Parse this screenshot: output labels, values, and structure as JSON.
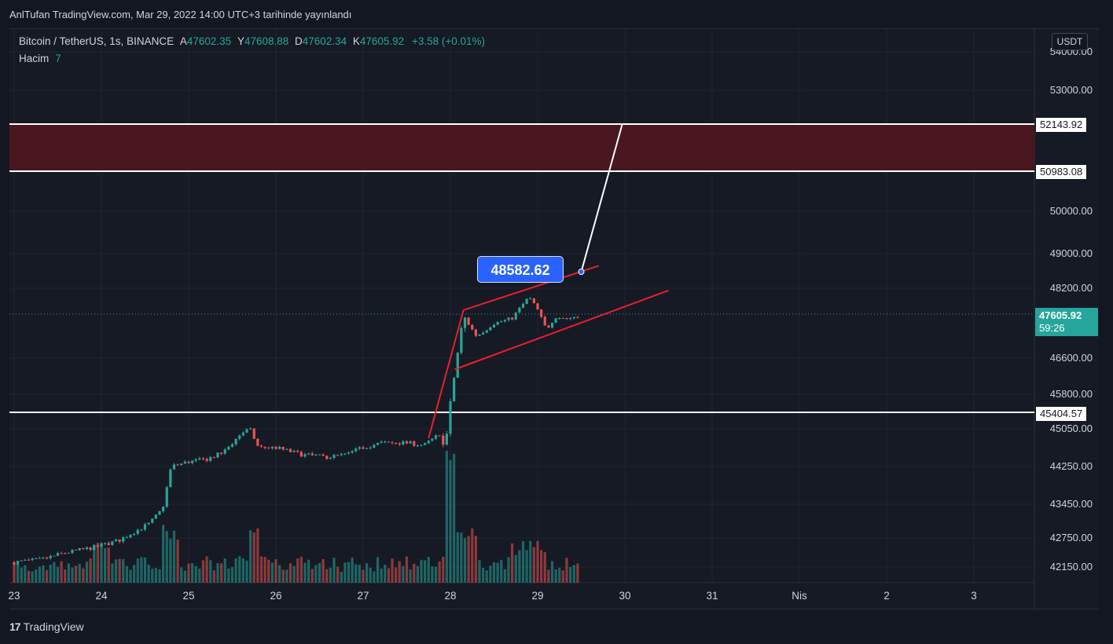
{
  "header": {
    "title": "AnlTufan TradingView.com, Mar 29, 2022 14:00 UTC+3 tarihinde yayınlandı"
  },
  "legend": {
    "symbol": "Bitcoin / TetherUS, 1s, BINANCE",
    "open_label": "A",
    "open": "47602.35",
    "high_label": "Y",
    "high": "47608.88",
    "low_label": "D",
    "low": "47602.34",
    "close_label": "K",
    "close": "47605.92",
    "change": "+3.58 (+0.01%)",
    "volume_label": "Hacim",
    "volume": "7"
  },
  "currency_button": "USDT",
  "price_tags": {
    "zone_top": "52143.92",
    "zone_bottom": "50983.08",
    "support": "45404.57",
    "current": "47605.92",
    "countdown": "59:26"
  },
  "callout": "48582.62",
  "footer": {
    "logo": "17",
    "brand": "TradingView"
  },
  "colors": {
    "up": "#26a69a",
    "down": "#ef5350",
    "zone_fill": "#4a1620",
    "trendline": "#e8202a",
    "hline": "#ffffff",
    "callout": "#2962ff"
  },
  "chart_data": {
    "type": "candlestick",
    "ylim": [
      41950,
      54400
    ],
    "y_ticks": [
      "54000.00",
      "53000.00",
      "50000.00",
      "49000.00",
      "48200.00",
      "46600.00",
      "45800.00",
      "45050.00",
      "44250.00",
      "43450.00",
      "42750.00",
      "42150.00"
    ],
    "x_ticks": [
      "23",
      "24",
      "25",
      "26",
      "27",
      "28",
      "29",
      "30",
      "31",
      "Nis",
      "2",
      "3"
    ],
    "x_tick_days": [
      23,
      24,
      25,
      26,
      27,
      28,
      29,
      30,
      31,
      32,
      33,
      34
    ],
    "price_path": [
      [
        23.0,
        42250
      ],
      [
        23.3,
        42300
      ],
      [
        23.6,
        42450
      ],
      [
        23.9,
        42550
      ],
      [
        24.2,
        42700
      ],
      [
        24.4,
        42900
      ],
      [
        24.55,
        43050
      ],
      [
        24.7,
        43350
      ],
      [
        24.8,
        44250
      ],
      [
        25.0,
        44350
      ],
      [
        25.2,
        44400
      ],
      [
        25.4,
        44550
      ],
      [
        25.5,
        44750
      ],
      [
        25.6,
        44950
      ],
      [
        25.7,
        45050
      ],
      [
        25.8,
        44650
      ],
      [
        26.0,
        44650
      ],
      [
        26.3,
        44500
      ],
      [
        26.6,
        44450
      ],
      [
        26.8,
        44500
      ],
      [
        27.0,
        44650
      ],
      [
        27.2,
        44750
      ],
      [
        27.5,
        44750
      ],
      [
        27.7,
        44700
      ],
      [
        27.85,
        44900
      ],
      [
        27.95,
        44800
      ],
      [
        28.05,
        46300
      ],
      [
        28.15,
        47550
      ],
      [
        28.3,
        47100
      ],
      [
        28.5,
        47400
      ],
      [
        28.7,
        47500
      ],
      [
        28.9,
        48000
      ],
      [
        29.0,
        47700
      ],
      [
        29.1,
        47250
      ],
      [
        29.2,
        47550
      ],
      [
        29.35,
        47500
      ],
      [
        29.5,
        47606
      ]
    ],
    "volume_level": "spikes on 28",
    "zone": {
      "top": 52143.92,
      "bottom": 50983.08
    },
    "support_line": 45404.57,
    "current_price": 47605.92,
    "pattern": {
      "upper_line": [
        [
          28.15,
          47700
        ],
        [
          29.7,
          48720
        ]
      ],
      "lower_line": [
        [
          28.05,
          46350
        ],
        [
          30.5,
          48150
        ]
      ],
      "pole": [
        [
          27.75,
          44850
        ],
        [
          28.15,
          47700
        ]
      ],
      "projection": [
        [
          29.5,
          48582.62
        ],
        [
          29.97,
          52143.92
        ]
      ]
    }
  }
}
